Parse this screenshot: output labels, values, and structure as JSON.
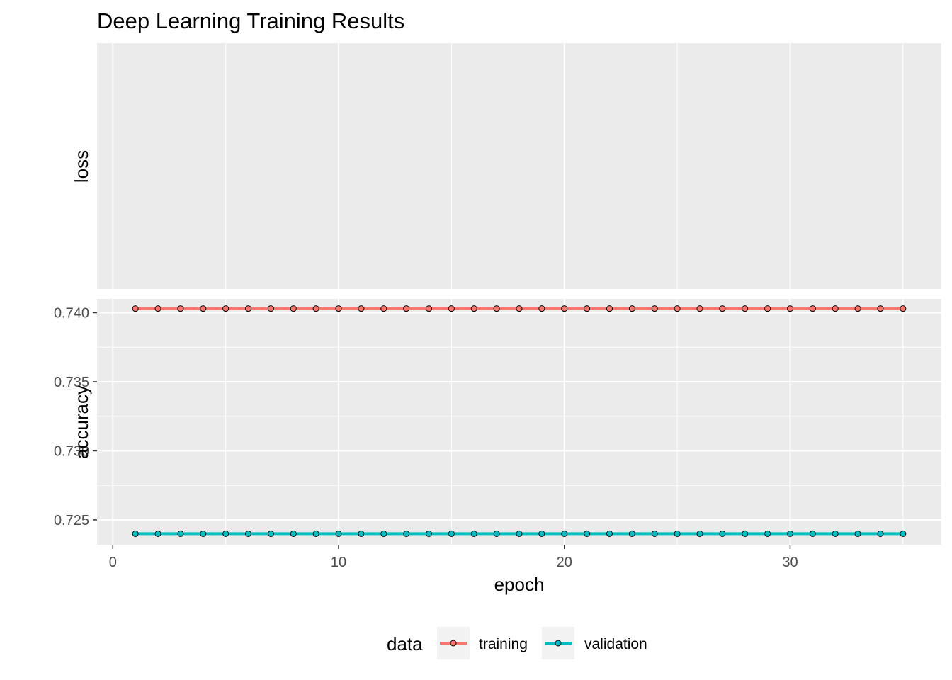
{
  "chart_data": {
    "type": "line",
    "title": "Deep Learning Training Results",
    "xlabel": "epoch",
    "x": [
      1,
      2,
      3,
      4,
      5,
      6,
      7,
      8,
      9,
      10,
      11,
      12,
      13,
      14,
      15,
      16,
      17,
      18,
      19,
      20,
      21,
      22,
      23,
      24,
      25,
      26,
      27,
      28,
      29,
      30,
      31,
      32,
      33,
      34,
      35
    ],
    "xlim": [
      -0.7,
      36.7
    ],
    "x_ticks": [
      0,
      10,
      20,
      30
    ],
    "x_tick_labels": [
      "0",
      "10",
      "20",
      "30"
    ],
    "facets": [
      {
        "name": "loss",
        "ylabel": "loss",
        "series": []
      },
      {
        "name": "accuracy",
        "ylabel": "accuracy",
        "ylim": [
          0.7232,
          0.741
        ],
        "y_ticks": [
          0.725,
          0.73,
          0.735,
          0.74
        ],
        "y_tick_labels": [
          "0.725",
          "0.730",
          "0.735",
          "0.740"
        ],
        "series": [
          {
            "name": "training",
            "color": "#F8766D",
            "values": [
              0.7403,
              0.7403,
              0.7403,
              0.7403,
              0.7403,
              0.7403,
              0.7403,
              0.7403,
              0.7403,
              0.7403,
              0.7403,
              0.7403,
              0.7403,
              0.7403,
              0.7403,
              0.7403,
              0.7403,
              0.7403,
              0.7403,
              0.7403,
              0.7403,
              0.7403,
              0.7403,
              0.7403,
              0.7403,
              0.7403,
              0.7403,
              0.7403,
              0.7403,
              0.7403,
              0.7403,
              0.7403,
              0.7403,
              0.7403,
              0.7403
            ]
          },
          {
            "name": "validation",
            "color": "#00BFC4",
            "values": [
              0.724,
              0.724,
              0.724,
              0.724,
              0.724,
              0.724,
              0.724,
              0.724,
              0.724,
              0.724,
              0.724,
              0.724,
              0.724,
              0.724,
              0.724,
              0.724,
              0.724,
              0.724,
              0.724,
              0.724,
              0.724,
              0.724,
              0.724,
              0.724,
              0.724,
              0.724,
              0.724,
              0.724,
              0.724,
              0.724,
              0.724,
              0.724,
              0.724,
              0.724,
              0.724
            ]
          }
        ]
      }
    ],
    "grid": true,
    "panel_background": "#EBEBEB",
    "legend": {
      "title": "data",
      "position": "bottom",
      "entries": [
        "training",
        "validation"
      ]
    }
  }
}
